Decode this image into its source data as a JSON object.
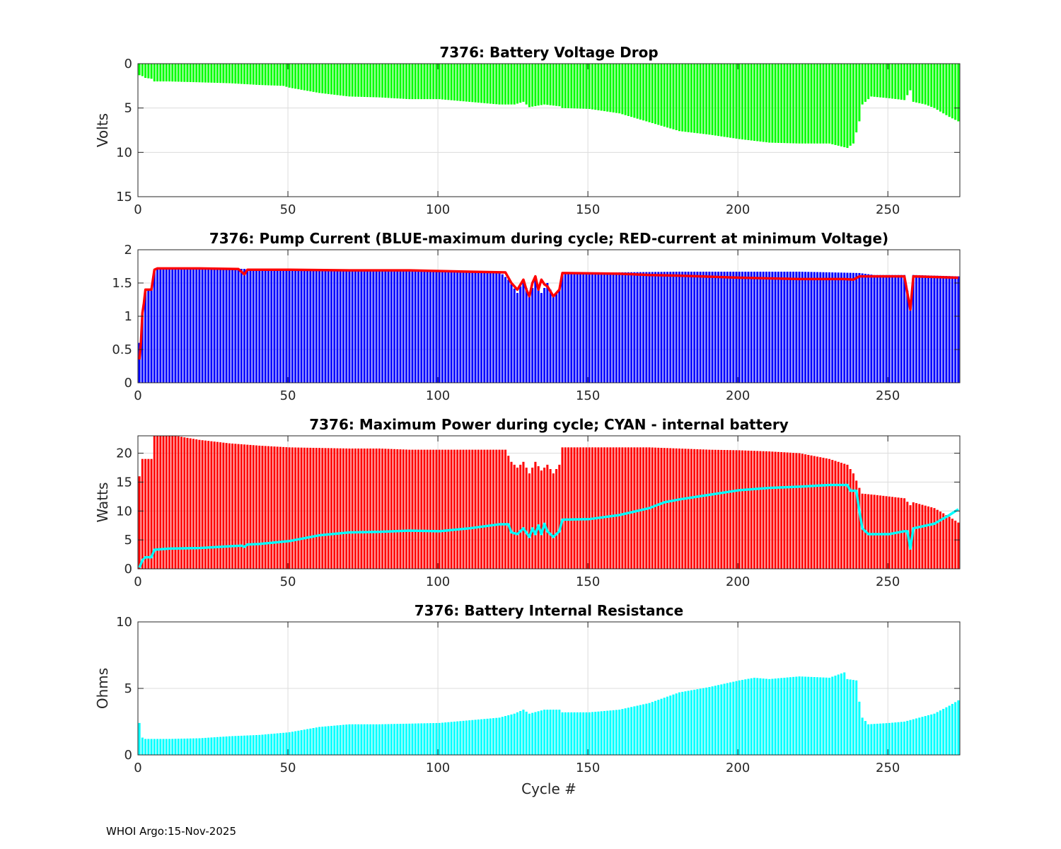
{
  "footer": "WHOI Argo:15-Nov-2025",
  "chart_data": [
    {
      "type": "bar",
      "title": "7376: Battery Voltage Drop",
      "ylabel": "Volts",
      "xlabel": "",
      "xlim": [
        0,
        274
      ],
      "ylim": [
        0,
        15
      ],
      "y_reversed": true,
      "xticks": [
        0,
        50,
        100,
        150,
        200,
        250
      ],
      "yticks": [
        0,
        5,
        10,
        15
      ],
      "grid": true,
      "bar_color": "#00ff00",
      "keypoints": [
        [
          0,
          1.3
        ],
        [
          1,
          1.4
        ],
        [
          2,
          1.6
        ],
        [
          4,
          1.7
        ],
        [
          5,
          2.0
        ],
        [
          10,
          2.0
        ],
        [
          20,
          2.1
        ],
        [
          30,
          2.2
        ],
        [
          40,
          2.4
        ],
        [
          48,
          2.5
        ],
        [
          50,
          2.7
        ],
        [
          60,
          3.3
        ],
        [
          70,
          3.7
        ],
        [
          80,
          3.8
        ],
        [
          90,
          4.0
        ],
        [
          100,
          4.0
        ],
        [
          110,
          4.3
        ],
        [
          120,
          4.6
        ],
        [
          125,
          4.6
        ],
        [
          128,
          4.3
        ],
        [
          130,
          4.9
        ],
        [
          135,
          4.6
        ],
        [
          140,
          4.8
        ],
        [
          141,
          5.0
        ],
        [
          150,
          5.1
        ],
        [
          160,
          5.6
        ],
        [
          170,
          6.6
        ],
        [
          180,
          7.6
        ],
        [
          190,
          8.0
        ],
        [
          200,
          8.5
        ],
        [
          210,
          8.9
        ],
        [
          220,
          9.0
        ],
        [
          230,
          9.0
        ],
        [
          236,
          9.5
        ],
        [
          238,
          9.0
        ],
        [
          240,
          6.5
        ],
        [
          241,
          4.6
        ],
        [
          244,
          3.7
        ],
        [
          250,
          3.9
        ],
        [
          255,
          4.1
        ],
        [
          257,
          3.0
        ],
        [
          258,
          4.3
        ],
        [
          262,
          4.6
        ],
        [
          265,
          5.0
        ],
        [
          270,
          6.0
        ],
        [
          273,
          6.5
        ]
      ]
    },
    {
      "type": "bar",
      "title": "7376: Pump Current (BLUE-maximum during cycle; RED-current at minimum Voltage)",
      "ylabel": "",
      "xlabel": "",
      "xlim": [
        0,
        274
      ],
      "ylim": [
        0,
        2
      ],
      "xticks": [
        0,
        50,
        100,
        150,
        200,
        250
      ],
      "yticks": [
        0,
        0.5,
        1,
        1.5,
        2
      ],
      "ytick_labels": [
        "0",
        "0.5",
        "1",
        "1.5",
        "2"
      ],
      "grid": true,
      "series": [
        {
          "name": "maximum during cycle",
          "type": "bar",
          "color": "#0000ff",
          "keypoints": [
            [
              0,
              0.6
            ],
            [
              1,
              1.0
            ],
            [
              2,
              1.38
            ],
            [
              4,
              1.4
            ],
            [
              5,
              1.7
            ],
            [
              20,
              1.72
            ],
            [
              40,
              1.71
            ],
            [
              80,
              1.7
            ],
            [
              100,
              1.68
            ],
            [
              120,
              1.67
            ],
            [
              123,
              1.55
            ],
            [
              126,
              1.35
            ],
            [
              128,
              1.55
            ],
            [
              130,
              1.3
            ],
            [
              132,
              1.55
            ],
            [
              134,
              1.35
            ],
            [
              136,
              1.5
            ],
            [
              138,
              1.3
            ],
            [
              140,
              1.4
            ],
            [
              141,
              1.65
            ],
            [
              160,
              1.66
            ],
            [
              180,
              1.67
            ],
            [
              200,
              1.67
            ],
            [
              220,
              1.67
            ],
            [
              240,
              1.65
            ],
            [
              245,
              1.62
            ],
            [
              255,
              1.62
            ],
            [
              257,
              1.15
            ],
            [
              258,
              1.62
            ],
            [
              273,
              1.6
            ]
          ]
        },
        {
          "name": "current at minimum Voltage",
          "type": "line",
          "color": "#ff0000",
          "keypoints": [
            [
              0,
              0.35
            ],
            [
              0.5,
              0.6
            ],
            [
              1,
              1.05
            ],
            [
              1.5,
              1.2
            ],
            [
              2,
              1.4
            ],
            [
              4,
              1.4
            ],
            [
              5,
              1.7
            ],
            [
              6,
              1.72
            ],
            [
              20,
              1.72
            ],
            [
              33,
              1.71
            ],
            [
              35,
              1.63
            ],
            [
              36,
              1.7
            ],
            [
              50,
              1.7
            ],
            [
              70,
              1.69
            ],
            [
              90,
              1.69
            ],
            [
              110,
              1.67
            ],
            [
              122,
              1.66
            ],
            [
              124,
              1.5
            ],
            [
              126,
              1.4
            ],
            [
              128,
              1.55
            ],
            [
              129,
              1.4
            ],
            [
              130,
              1.3
            ],
            [
              131,
              1.5
            ],
            [
              132,
              1.6
            ],
            [
              133,
              1.4
            ],
            [
              134,
              1.55
            ],
            [
              135,
              1.48
            ],
            [
              136,
              1.45
            ],
            [
              138,
              1.3
            ],
            [
              140,
              1.4
            ],
            [
              141,
              1.65
            ],
            [
              160,
              1.64
            ],
            [
              170,
              1.62
            ],
            [
              180,
              1.61
            ],
            [
              200,
              1.58
            ],
            [
              220,
              1.56
            ],
            [
              235,
              1.56
            ],
            [
              238,
              1.55
            ],
            [
              240,
              1.6
            ],
            [
              255,
              1.6
            ],
            [
              257,
              1.1
            ],
            [
              258,
              1.6
            ],
            [
              273,
              1.58
            ]
          ]
        }
      ]
    },
    {
      "type": "bar",
      "title": "7376: Maximum Power during cycle; CYAN - internal battery",
      "ylabel": "Watts",
      "xlabel": "",
      "xlim": [
        0,
        274
      ],
      "ylim": [
        0,
        23
      ],
      "xticks": [
        0,
        50,
        100,
        150,
        200,
        250
      ],
      "yticks": [
        0,
        5,
        10,
        15,
        20
      ],
      "grid": true,
      "series": [
        {
          "name": "Maximum Power",
          "type": "bar",
          "color": "#ff0000",
          "keypoints": [
            [
              0,
              16
            ],
            [
              1,
              19
            ],
            [
              4,
              19
            ],
            [
              5,
              23
            ],
            [
              12,
              23
            ],
            [
              20,
              22.3
            ],
            [
              30,
              21.7
            ],
            [
              40,
              21.3
            ],
            [
              50,
              21.0
            ],
            [
              60,
              20.9
            ],
            [
              70,
              20.8
            ],
            [
              80,
              20.8
            ],
            [
              90,
              20.6
            ],
            [
              100,
              20.6
            ],
            [
              110,
              20.6
            ],
            [
              122,
              20.6
            ],
            [
              124,
              18.5
            ],
            [
              126,
              17.5
            ],
            [
              128,
              18.5
            ],
            [
              130,
              16.5
            ],
            [
              132,
              18.5
            ],
            [
              134,
              17
            ],
            [
              136,
              18
            ],
            [
              138,
              16.5
            ],
            [
              140,
              18
            ],
            [
              141,
              21
            ],
            [
              150,
              21
            ],
            [
              160,
              21
            ],
            [
              170,
              21
            ],
            [
              180,
              20.8
            ],
            [
              190,
              20.6
            ],
            [
              200,
              20.5
            ],
            [
              210,
              20.3
            ],
            [
              220,
              20.0
            ],
            [
              230,
              19.0
            ],
            [
              236,
              18.0
            ],
            [
              238,
              16.5
            ],
            [
              240,
              14
            ],
            [
              241,
              13
            ],
            [
              245,
              12.8
            ],
            [
              255,
              12.2
            ],
            [
              257,
              11
            ],
            [
              258,
              11.5
            ],
            [
              265,
              10.5
            ],
            [
              270,
              9.0
            ],
            [
              273,
              8.0
            ]
          ]
        },
        {
          "name": "internal battery",
          "type": "line",
          "color": "#00ffff",
          "keypoints": [
            [
              0,
              0.2
            ],
            [
              1,
              1.5
            ],
            [
              2,
              2.0
            ],
            [
              4,
              2.0
            ],
            [
              5,
              3.3
            ],
            [
              10,
              3.5
            ],
            [
              20,
              3.6
            ],
            [
              30,
              3.9
            ],
            [
              34,
              4.0
            ],
            [
              35,
              3.8
            ],
            [
              36,
              4.2
            ],
            [
              40,
              4.3
            ],
            [
              50,
              4.8
            ],
            [
              60,
              5.8
            ],
            [
              70,
              6.3
            ],
            [
              80,
              6.4
            ],
            [
              90,
              6.6
            ],
            [
              100,
              6.5
            ],
            [
              110,
              7.0
            ],
            [
              120,
              7.7
            ],
            [
              123,
              7.7
            ],
            [
              124,
              6.3
            ],
            [
              126,
              6.0
            ],
            [
              128,
              7.0
            ],
            [
              130,
              5.5
            ],
            [
              131,
              7.0
            ],
            [
              132,
              6.0
            ],
            [
              133,
              7.5
            ],
            [
              134,
              6.0
            ],
            [
              135,
              7.8
            ],
            [
              136,
              6.5
            ],
            [
              138,
              5.5
            ],
            [
              140,
              6.5
            ],
            [
              141,
              8.5
            ],
            [
              150,
              8.6
            ],
            [
              160,
              9.3
            ],
            [
              170,
              10.5
            ],
            [
              175,
              11.5
            ],
            [
              180,
              12.0
            ],
            [
              190,
              12.8
            ],
            [
              200,
              13.6
            ],
            [
              210,
              14.0
            ],
            [
              220,
              14.2
            ],
            [
              230,
              14.5
            ],
            [
              236,
              14.5
            ],
            [
              237,
              13.5
            ],
            [
              239,
              13.5
            ],
            [
              240,
              10
            ],
            [
              241,
              7.0
            ],
            [
              243,
              6.0
            ],
            [
              250,
              6.0
            ],
            [
              255,
              6.5
            ],
            [
              256,
              6.5
            ],
            [
              257,
              3.5
            ],
            [
              258,
              7.0
            ],
            [
              265,
              7.8
            ],
            [
              270,
              9.3
            ],
            [
              273,
              10.3
            ]
          ]
        }
      ]
    },
    {
      "type": "bar",
      "title": "7376: Battery Internal Resistance",
      "ylabel": "Ohms",
      "xlabel": "Cycle #",
      "xlim": [
        0,
        274
      ],
      "ylim": [
        0,
        10
      ],
      "xticks": [
        0,
        50,
        100,
        150,
        200,
        250
      ],
      "yticks": [
        0,
        5,
        10
      ],
      "grid": true,
      "bar_color": "#00ffff",
      "keypoints": [
        [
          0,
          2.4
        ],
        [
          1,
          1.3
        ],
        [
          2,
          1.2
        ],
        [
          10,
          1.2
        ],
        [
          20,
          1.25
        ],
        [
          30,
          1.4
        ],
        [
          40,
          1.5
        ],
        [
          50,
          1.7
        ],
        [
          60,
          2.1
        ],
        [
          70,
          2.3
        ],
        [
          80,
          2.3
        ],
        [
          90,
          2.35
        ],
        [
          100,
          2.4
        ],
        [
          110,
          2.6
        ],
        [
          120,
          2.8
        ],
        [
          125,
          3.1
        ],
        [
          128,
          3.4
        ],
        [
          130,
          3.1
        ],
        [
          135,
          3.4
        ],
        [
          140,
          3.4
        ],
        [
          141,
          3.2
        ],
        [
          150,
          3.2
        ],
        [
          160,
          3.4
        ],
        [
          170,
          3.9
        ],
        [
          175,
          4.3
        ],
        [
          180,
          4.7
        ],
        [
          190,
          5.1
        ],
        [
          200,
          5.6
        ],
        [
          205,
          5.8
        ],
        [
          210,
          5.7
        ],
        [
          220,
          5.9
        ],
        [
          230,
          5.8
        ],
        [
          235,
          6.2
        ],
        [
          236,
          5.7
        ],
        [
          239,
          5.6
        ],
        [
          240,
          4.0
        ],
        [
          241,
          2.8
        ],
        [
          243,
          2.3
        ],
        [
          250,
          2.4
        ],
        [
          255,
          2.5
        ],
        [
          260,
          2.8
        ],
        [
          265,
          3.1
        ],
        [
          270,
          3.7
        ],
        [
          273,
          4.1
        ]
      ]
    }
  ]
}
